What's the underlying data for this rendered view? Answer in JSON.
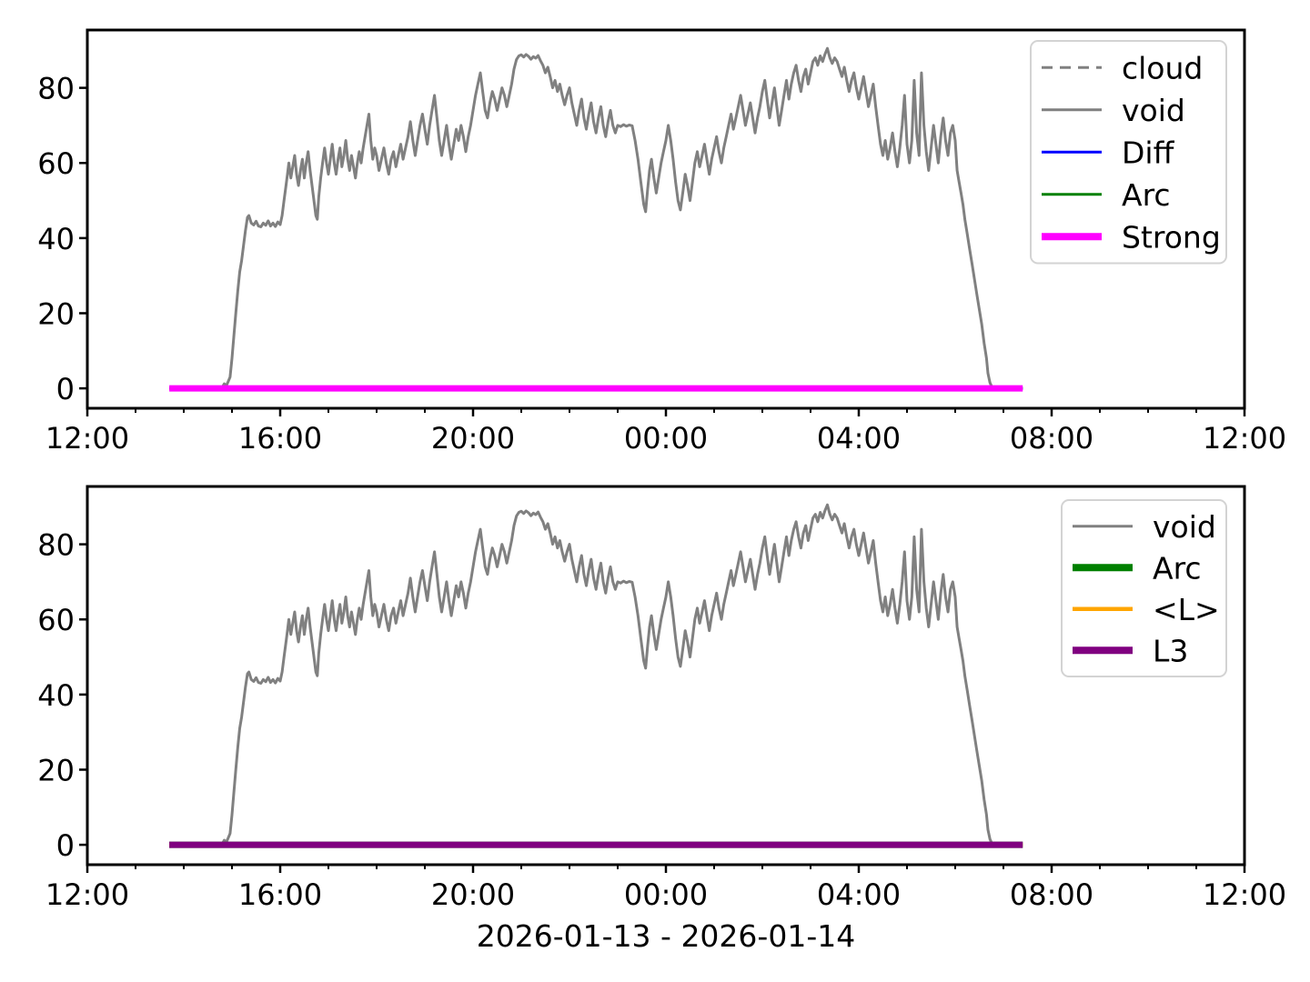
{
  "figure": {
    "xlabel": "2026-01-13 - 2026-01-14",
    "background_color": "#ffffff",
    "curve_color": "#808080"
  },
  "chart_data": [
    {
      "type": "line",
      "panel": "top",
      "title": "",
      "x_axis": {
        "tick_labels": [
          "12:00",
          "16:00",
          "20:00",
          "00:00",
          "04:00",
          "08:00",
          "12:00"
        ],
        "tick_hours": [
          0,
          4,
          8,
          12,
          16,
          20,
          24
        ],
        "minor_tick_every_hours": 1,
        "range_hours": [
          0,
          24
        ]
      },
      "y_axis": {
        "ticks": [
          0,
          20,
          40,
          60,
          80
        ],
        "tick_labels": [
          "0",
          "20",
          "40",
          "60",
          "80"
        ],
        "range": [
          -5.3,
          95.4
        ]
      },
      "legend": {
        "position": "upper right",
        "entries": [
          {
            "label": "cloud",
            "color": "#808080",
            "line_style": "dashed",
            "line_width": 3
          },
          {
            "label": "void",
            "color": "#808080",
            "line_style": "solid",
            "line_width": 3
          },
          {
            "label": "Diff",
            "color": "#0000ff",
            "line_style": "solid",
            "line_width": 3
          },
          {
            "label": "Arc",
            "color": "#008000",
            "line_style": "solid",
            "line_width": 3
          },
          {
            "label": "Strong",
            "color": "#ff00ff",
            "line_style": "solid",
            "line_width": 8
          }
        ]
      },
      "series": [
        {
          "name": "void",
          "color": "#808080",
          "line_width": 3,
          "points_ref": "void_points_hours_value"
        },
        {
          "name": "Diff",
          "color": "#0000ff",
          "line_width": 3,
          "y": 0,
          "span_hours": [
            1.7,
            19.4
          ]
        },
        {
          "name": "Arc",
          "color": "#008000",
          "line_width": 3,
          "y": 0,
          "span_hours": [
            1.7,
            19.4
          ]
        },
        {
          "name": "Strong",
          "color": "#ff00ff",
          "line_width": 7,
          "y": 0,
          "span_hours": [
            1.7,
            19.4
          ]
        }
      ]
    },
    {
      "type": "line",
      "panel": "bottom",
      "title": "",
      "x_axis": {
        "tick_labels": [
          "12:00",
          "16:00",
          "20:00",
          "00:00",
          "04:00",
          "08:00",
          "12:00"
        ],
        "tick_hours": [
          0,
          4,
          8,
          12,
          16,
          20,
          24
        ],
        "minor_tick_every_hours": 1,
        "range_hours": [
          0,
          24
        ]
      },
      "y_axis": {
        "ticks": [
          0,
          20,
          40,
          60,
          80
        ],
        "tick_labels": [
          "0",
          "20",
          "40",
          "60",
          "80"
        ],
        "range": [
          -5.3,
          95.4
        ]
      },
      "legend": {
        "position": "upper right",
        "entries": [
          {
            "label": "void",
            "color": "#808080",
            "line_style": "solid",
            "line_width": 3
          },
          {
            "label": "Arc",
            "color": "#008000",
            "line_style": "solid",
            "line_width": 8
          },
          {
            "label": "<L>",
            "color": "#ffa500",
            "line_style": "solid",
            "line_width": 4.5
          },
          {
            "label": "L3",
            "color": "#800080",
            "line_style": "solid",
            "line_width": 8
          }
        ]
      },
      "series": [
        {
          "name": "void",
          "color": "#808080",
          "line_width": 3,
          "points_ref": "void_points_hours_value"
        },
        {
          "name": "Arc",
          "color": "#008000",
          "line_width": 7,
          "y": 0,
          "span_hours": [
            1.7,
            19.4
          ]
        },
        {
          "name": "<L>",
          "color": "#ffa500",
          "line_width": 4.5,
          "y": 0,
          "span_hours": [
            1.7,
            19.4
          ]
        },
        {
          "name": "L3",
          "color": "#800080",
          "line_width": 7,
          "y": 0,
          "span_hours": [
            1.7,
            19.4
          ]
        }
      ]
    }
  ],
  "shared_series": {
    "void_points_hours_value": [
      [
        1.7,
        0
      ],
      [
        1.9,
        0
      ],
      [
        2.1,
        0
      ],
      [
        2.3,
        0
      ],
      [
        2.5,
        0
      ],
      [
        2.7,
        0
      ],
      [
        2.8,
        0.3
      ],
      [
        2.84,
        1.2
      ],
      [
        2.88,
        0.6
      ],
      [
        2.92,
        1.8
      ],
      [
        2.96,
        3.0
      ],
      [
        3.0,
        8
      ],
      [
        3.04,
        14
      ],
      [
        3.08,
        20
      ],
      [
        3.12,
        26
      ],
      [
        3.16,
        31
      ],
      [
        3.2,
        34
      ],
      [
        3.24,
        38
      ],
      [
        3.28,
        42
      ],
      [
        3.32,
        45.5
      ],
      [
        3.35,
        46
      ],
      [
        3.4,
        44
      ],
      [
        3.45,
        43.5
      ],
      [
        3.5,
        44.5
      ],
      [
        3.55,
        43.2
      ],
      [
        3.6,
        43
      ],
      [
        3.65,
        44
      ],
      [
        3.7,
        43.4
      ],
      [
        3.75,
        44.6
      ],
      [
        3.8,
        43.2
      ],
      [
        3.85,
        44
      ],
      [
        3.9,
        43.1
      ],
      [
        3.95,
        44.3
      ],
      [
        4.0,
        43.6
      ],
      [
        4.04,
        46
      ],
      [
        4.08,
        50
      ],
      [
        4.12,
        54
      ],
      [
        4.15,
        57
      ],
      [
        4.18,
        60
      ],
      [
        4.22,
        56
      ],
      [
        4.26,
        59
      ],
      [
        4.3,
        62
      ],
      [
        4.34,
        57
      ],
      [
        4.38,
        54
      ],
      [
        4.42,
        58
      ],
      [
        4.46,
        61
      ],
      [
        4.5,
        56
      ],
      [
        4.54,
        60
      ],
      [
        4.58,
        63
      ],
      [
        4.62,
        58
      ],
      [
        4.66,
        54
      ],
      [
        4.7,
        50
      ],
      [
        4.74,
        46
      ],
      [
        4.77,
        45
      ],
      [
        4.8,
        51
      ],
      [
        4.84,
        56
      ],
      [
        4.88,
        60
      ],
      [
        4.92,
        64
      ],
      [
        4.96,
        60
      ],
      [
        5.0,
        57
      ],
      [
        5.04,
        61
      ],
      [
        5.08,
        65
      ],
      [
        5.12,
        60
      ],
      [
        5.16,
        57
      ],
      [
        5.2,
        61
      ],
      [
        5.24,
        64
      ],
      [
        5.28,
        59
      ],
      [
        5.32,
        62
      ],
      [
        5.36,
        66
      ],
      [
        5.4,
        61
      ],
      [
        5.44,
        58
      ],
      [
        5.48,
        62
      ],
      [
        5.52,
        59
      ],
      [
        5.56,
        56
      ],
      [
        5.6,
        60
      ],
      [
        5.64,
        63
      ],
      [
        5.68,
        60
      ],
      [
        5.72,
        64
      ],
      [
        5.76,
        67
      ],
      [
        5.8,
        70
      ],
      [
        5.84,
        73
      ],
      [
        5.88,
        66
      ],
      [
        5.92,
        61
      ],
      [
        5.96,
        64
      ],
      [
        6.0,
        62
      ],
      [
        6.05,
        58
      ],
      [
        6.1,
        61
      ],
      [
        6.15,
        64
      ],
      [
        6.2,
        60
      ],
      [
        6.25,
        57
      ],
      [
        6.3,
        61
      ],
      [
        6.35,
        63
      ],
      [
        6.4,
        59
      ],
      [
        6.45,
        62
      ],
      [
        6.5,
        65
      ],
      [
        6.55,
        61
      ],
      [
        6.6,
        64
      ],
      [
        6.65,
        67
      ],
      [
        6.7,
        71
      ],
      [
        6.75,
        66
      ],
      [
        6.8,
        62
      ],
      [
        6.85,
        66
      ],
      [
        6.9,
        70
      ],
      [
        6.95,
        73
      ],
      [
        7.0,
        69
      ],
      [
        7.05,
        65
      ],
      [
        7.1,
        70
      ],
      [
        7.15,
        74
      ],
      [
        7.2,
        78
      ],
      [
        7.25,
        72
      ],
      [
        7.3,
        66
      ],
      [
        7.35,
        62
      ],
      [
        7.4,
        66
      ],
      [
        7.45,
        70
      ],
      [
        7.5,
        65
      ],
      [
        7.55,
        61
      ],
      [
        7.6,
        65
      ],
      [
        7.65,
        69
      ],
      [
        7.7,
        66
      ],
      [
        7.75,
        70
      ],
      [
        7.8,
        67
      ],
      [
        7.85,
        63
      ],
      [
        7.9,
        67
      ],
      [
        7.95,
        70
      ],
      [
        8.0,
        74
      ],
      [
        8.05,
        78
      ],
      [
        8.1,
        81
      ],
      [
        8.15,
        84
      ],
      [
        8.2,
        79
      ],
      [
        8.25,
        74
      ],
      [
        8.3,
        72
      ],
      [
        8.35,
        76
      ],
      [
        8.4,
        79
      ],
      [
        8.45,
        77
      ],
      [
        8.5,
        74
      ],
      [
        8.55,
        77
      ],
      [
        8.6,
        80
      ],
      [
        8.65,
        78
      ],
      [
        8.7,
        75
      ],
      [
        8.75,
        78
      ],
      [
        8.8,
        81
      ],
      [
        8.85,
        85
      ],
      [
        8.9,
        87.5
      ],
      [
        8.95,
        88.5
      ],
      [
        9.0,
        88.8
      ],
      [
        9.05,
        88.2
      ],
      [
        9.1,
        88.9
      ],
      [
        9.15,
        88.4
      ],
      [
        9.2,
        87.6
      ],
      [
        9.25,
        88.3
      ],
      [
        9.3,
        87.9
      ],
      [
        9.35,
        88.6
      ],
      [
        9.4,
        87.2
      ],
      [
        9.45,
        86
      ],
      [
        9.5,
        84
      ],
      [
        9.55,
        85.5
      ],
      [
        9.6,
        83
      ],
      [
        9.65,
        80
      ],
      [
        9.7,
        82
      ],
      [
        9.75,
        79
      ],
      [
        9.8,
        81
      ],
      [
        9.85,
        78
      ],
      [
        9.9,
        75.5
      ],
      [
        9.95,
        78
      ],
      [
        10.0,
        80
      ],
      [
        10.05,
        76
      ],
      [
        10.1,
        73
      ],
      [
        10.15,
        70
      ],
      [
        10.2,
        74
      ],
      [
        10.25,
        77
      ],
      [
        10.3,
        72
      ],
      [
        10.35,
        69
      ],
      [
        10.4,
        73
      ],
      [
        10.45,
        76
      ],
      [
        10.5,
        71
      ],
      [
        10.55,
        68
      ],
      [
        10.6,
        72
      ],
      [
        10.65,
        75
      ],
      [
        10.7,
        70
      ],
      [
        10.75,
        67
      ],
      [
        10.8,
        71
      ],
      [
        10.85,
        74
      ],
      [
        10.9,
        70
      ],
      [
        10.95,
        68
      ],
      [
        11.0,
        70
      ],
      [
        11.06,
        69.7
      ],
      [
        11.12,
        70.2
      ],
      [
        11.18,
        69.8
      ],
      [
        11.24,
        70.1
      ],
      [
        11.3,
        69.9
      ],
      [
        11.36,
        66
      ],
      [
        11.42,
        61
      ],
      [
        11.48,
        55
      ],
      [
        11.54,
        49
      ],
      [
        11.58,
        47
      ],
      [
        11.62,
        53
      ],
      [
        11.66,
        58
      ],
      [
        11.7,
        61
      ],
      [
        11.75,
        56
      ],
      [
        11.8,
        52
      ],
      [
        11.85,
        56
      ],
      [
        11.9,
        60
      ],
      [
        11.95,
        63
      ],
      [
        12.0,
        66
      ],
      [
        12.05,
        70
      ],
      [
        12.1,
        66
      ],
      [
        12.15,
        61
      ],
      [
        12.2,
        55
      ],
      [
        12.25,
        50
      ],
      [
        12.3,
        47.5
      ],
      [
        12.35,
        52
      ],
      [
        12.4,
        57
      ],
      [
        12.45,
        54
      ],
      [
        12.5,
        50
      ],
      [
        12.55,
        55
      ],
      [
        12.6,
        60
      ],
      [
        12.65,
        63
      ],
      [
        12.7,
        59
      ],
      [
        12.75,
        62
      ],
      [
        12.8,
        65
      ],
      [
        12.85,
        61
      ],
      [
        12.9,
        57
      ],
      [
        12.95,
        61
      ],
      [
        13.0,
        64
      ],
      [
        13.05,
        67
      ],
      [
        13.1,
        63
      ],
      [
        13.15,
        60
      ],
      [
        13.2,
        64
      ],
      [
        13.25,
        67
      ],
      [
        13.3,
        70
      ],
      [
        13.35,
        73
      ],
      [
        13.4,
        69
      ],
      [
        13.45,
        72
      ],
      [
        13.5,
        75
      ],
      [
        13.55,
        78
      ],
      [
        13.6,
        74
      ],
      [
        13.65,
        70
      ],
      [
        13.7,
        73
      ],
      [
        13.75,
        76
      ],
      [
        13.8,
        72
      ],
      [
        13.85,
        68
      ],
      [
        13.9,
        72
      ],
      [
        13.95,
        75
      ],
      [
        14.0,
        79
      ],
      [
        14.05,
        82
      ],
      [
        14.1,
        77
      ],
      [
        14.15,
        72
      ],
      [
        14.2,
        76
      ],
      [
        14.25,
        80
      ],
      [
        14.3,
        75
      ],
      [
        14.35,
        70
      ],
      [
        14.4,
        74
      ],
      [
        14.45,
        78
      ],
      [
        14.5,
        82
      ],
      [
        14.55,
        77
      ],
      [
        14.6,
        81
      ],
      [
        14.65,
        84
      ],
      [
        14.7,
        86
      ],
      [
        14.75,
        82
      ],
      [
        14.8,
        79
      ],
      [
        14.85,
        83
      ],
      [
        14.9,
        85
      ],
      [
        14.95,
        81
      ],
      [
        15.0,
        84
      ],
      [
        15.05,
        87
      ],
      [
        15.1,
        88
      ],
      [
        15.15,
        86
      ],
      [
        15.2,
        88.5
      ],
      [
        15.25,
        87
      ],
      [
        15.3,
        89
      ],
      [
        15.35,
        90.5
      ],
      [
        15.4,
        88
      ],
      [
        15.45,
        86.5
      ],
      [
        15.5,
        88
      ],
      [
        15.55,
        87
      ],
      [
        15.6,
        85
      ],
      [
        15.65,
        83
      ],
      [
        15.7,
        85.5
      ],
      [
        15.75,
        82
      ],
      [
        15.8,
        79
      ],
      [
        15.85,
        82
      ],
      [
        15.9,
        84
      ],
      [
        15.95,
        80
      ],
      [
        16.0,
        77
      ],
      [
        16.05,
        80
      ],
      [
        16.1,
        83
      ],
      [
        16.15,
        79
      ],
      [
        16.2,
        75
      ],
      [
        16.25,
        78
      ],
      [
        16.3,
        81
      ],
      [
        16.35,
        75
      ],
      [
        16.4,
        70
      ],
      [
        16.45,
        65
      ],
      [
        16.5,
        62
      ],
      [
        16.55,
        66
      ],
      [
        16.6,
        61
      ],
      [
        16.65,
        64
      ],
      [
        16.7,
        68
      ],
      [
        16.75,
        63
      ],
      [
        16.8,
        59
      ],
      [
        16.85,
        64
      ],
      [
        16.9,
        70
      ],
      [
        16.95,
        78
      ],
      [
        17.0,
        65
      ],
      [
        17.05,
        60
      ],
      [
        17.1,
        66
      ],
      [
        17.15,
        82
      ],
      [
        17.2,
        68
      ],
      [
        17.25,
        62
      ],
      [
        17.3,
        84
      ],
      [
        17.35,
        70
      ],
      [
        17.4,
        63
      ],
      [
        17.45,
        58
      ],
      [
        17.5,
        64
      ],
      [
        17.55,
        70
      ],
      [
        17.6,
        65
      ],
      [
        17.65,
        60
      ],
      [
        17.7,
        67
      ],
      [
        17.75,
        72
      ],
      [
        17.8,
        66
      ],
      [
        17.85,
        62
      ],
      [
        17.9,
        68
      ],
      [
        17.95,
        70
      ],
      [
        18.0,
        66
      ],
      [
        18.04,
        58
      ],
      [
        18.08,
        55
      ],
      [
        18.12,
        52
      ],
      [
        18.16,
        49
      ],
      [
        18.2,
        45
      ],
      [
        18.25,
        41
      ],
      [
        18.3,
        37
      ],
      [
        18.35,
        33
      ],
      [
        18.4,
        29
      ],
      [
        18.45,
        25
      ],
      [
        18.5,
        21
      ],
      [
        18.55,
        17
      ],
      [
        18.6,
        12
      ],
      [
        18.65,
        8
      ],
      [
        18.68,
        4
      ],
      [
        18.72,
        1.5
      ],
      [
        18.76,
        0.4
      ],
      [
        18.9,
        0
      ],
      [
        19.1,
        0
      ],
      [
        19.4,
        0
      ]
    ]
  }
}
